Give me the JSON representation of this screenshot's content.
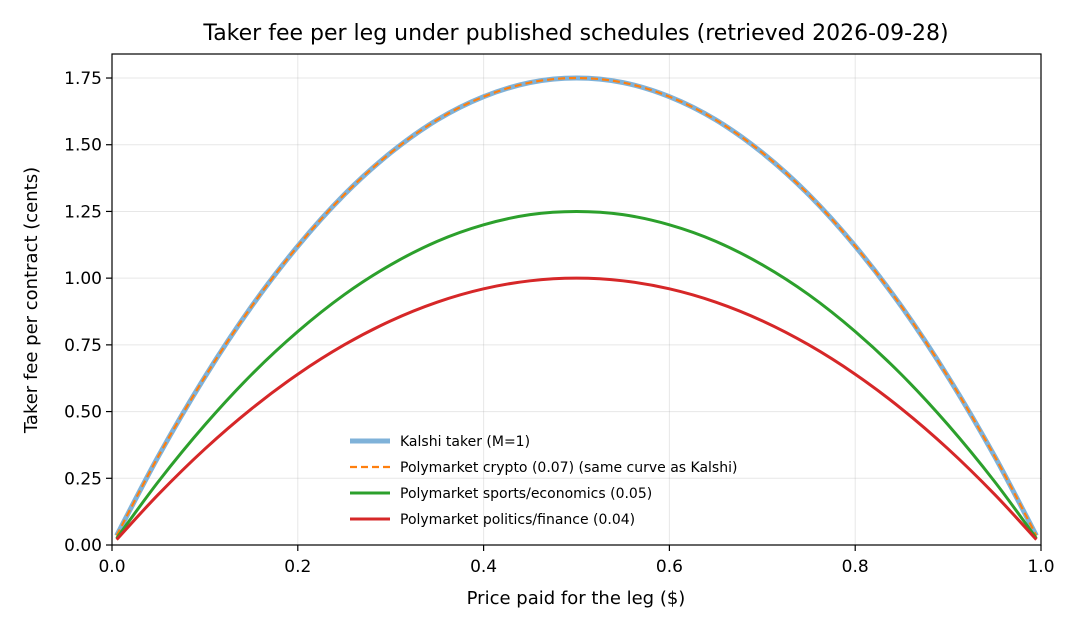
{
  "chart_data": {
    "type": "line",
    "title": "Taker fee per leg under published schedules (retrieved 2026-09-28)",
    "xlabel": "Price paid for the leg ($)",
    "ylabel": "Taker fee per contract (cents)",
    "xlim": [
      0.0,
      1.0
    ],
    "ylim": [
      0.0,
      1.84
    ],
    "xticks": [
      0.0,
      0.2,
      0.4,
      0.6,
      0.8,
      1.0
    ],
    "xtick_labels": [
      "0.0",
      "0.2",
      "0.4",
      "0.6",
      "0.8",
      "1.0"
    ],
    "yticks": [
      0.0,
      0.25,
      0.5,
      0.75,
      1.0,
      1.25,
      1.5,
      1.75
    ],
    "ytick_labels": [
      "0.00",
      "0.25",
      "0.50",
      "0.75",
      "1.00",
      "1.25",
      "1.50",
      "1.75"
    ],
    "grid": true,
    "legend_position": "lower-center",
    "x": [
      0.005,
      0.05,
      0.1,
      0.15,
      0.2,
      0.25,
      0.3,
      0.35,
      0.4,
      0.45,
      0.5,
      0.55,
      0.6,
      0.65,
      0.7,
      0.75,
      0.8,
      0.85,
      0.9,
      0.95,
      0.995
    ],
    "series": [
      {
        "name": "Kalshi taker (M=1)",
        "color": "#7fb2d9",
        "style": "solid-thick",
        "values": [
          0.035,
          0.333,
          0.63,
          0.893,
          1.12,
          1.313,
          1.47,
          1.593,
          1.68,
          1.733,
          1.75,
          1.733,
          1.68,
          1.593,
          1.47,
          1.313,
          1.12,
          0.893,
          0.63,
          0.333,
          0.035
        ]
      },
      {
        "name": "Polymarket crypto (0.07) (same curve as Kalshi)",
        "color": "#ff7f0e",
        "style": "dashed",
        "values": [
          0.035,
          0.333,
          0.63,
          0.893,
          1.12,
          1.313,
          1.47,
          1.593,
          1.68,
          1.733,
          1.75,
          1.733,
          1.68,
          1.593,
          1.47,
          1.313,
          1.12,
          0.893,
          0.63,
          0.333,
          0.035
        ]
      },
      {
        "name": "Polymarket sports/economics (0.05)",
        "color": "#2ca02c",
        "style": "solid",
        "values": [
          0.025,
          0.238,
          0.45,
          0.638,
          0.8,
          0.938,
          1.05,
          1.138,
          1.2,
          1.238,
          1.25,
          1.238,
          1.2,
          1.138,
          1.05,
          0.938,
          0.8,
          0.638,
          0.45,
          0.238,
          0.025
        ]
      },
      {
        "name": "Polymarket politics/finance (0.04)",
        "color": "#d62728",
        "style": "solid",
        "values": [
          0.02,
          0.19,
          0.36,
          0.51,
          0.64,
          0.75,
          0.84,
          0.91,
          0.96,
          0.99,
          1.0,
          0.99,
          0.96,
          0.91,
          0.84,
          0.75,
          0.64,
          0.51,
          0.36,
          0.19,
          0.02
        ]
      }
    ]
  }
}
